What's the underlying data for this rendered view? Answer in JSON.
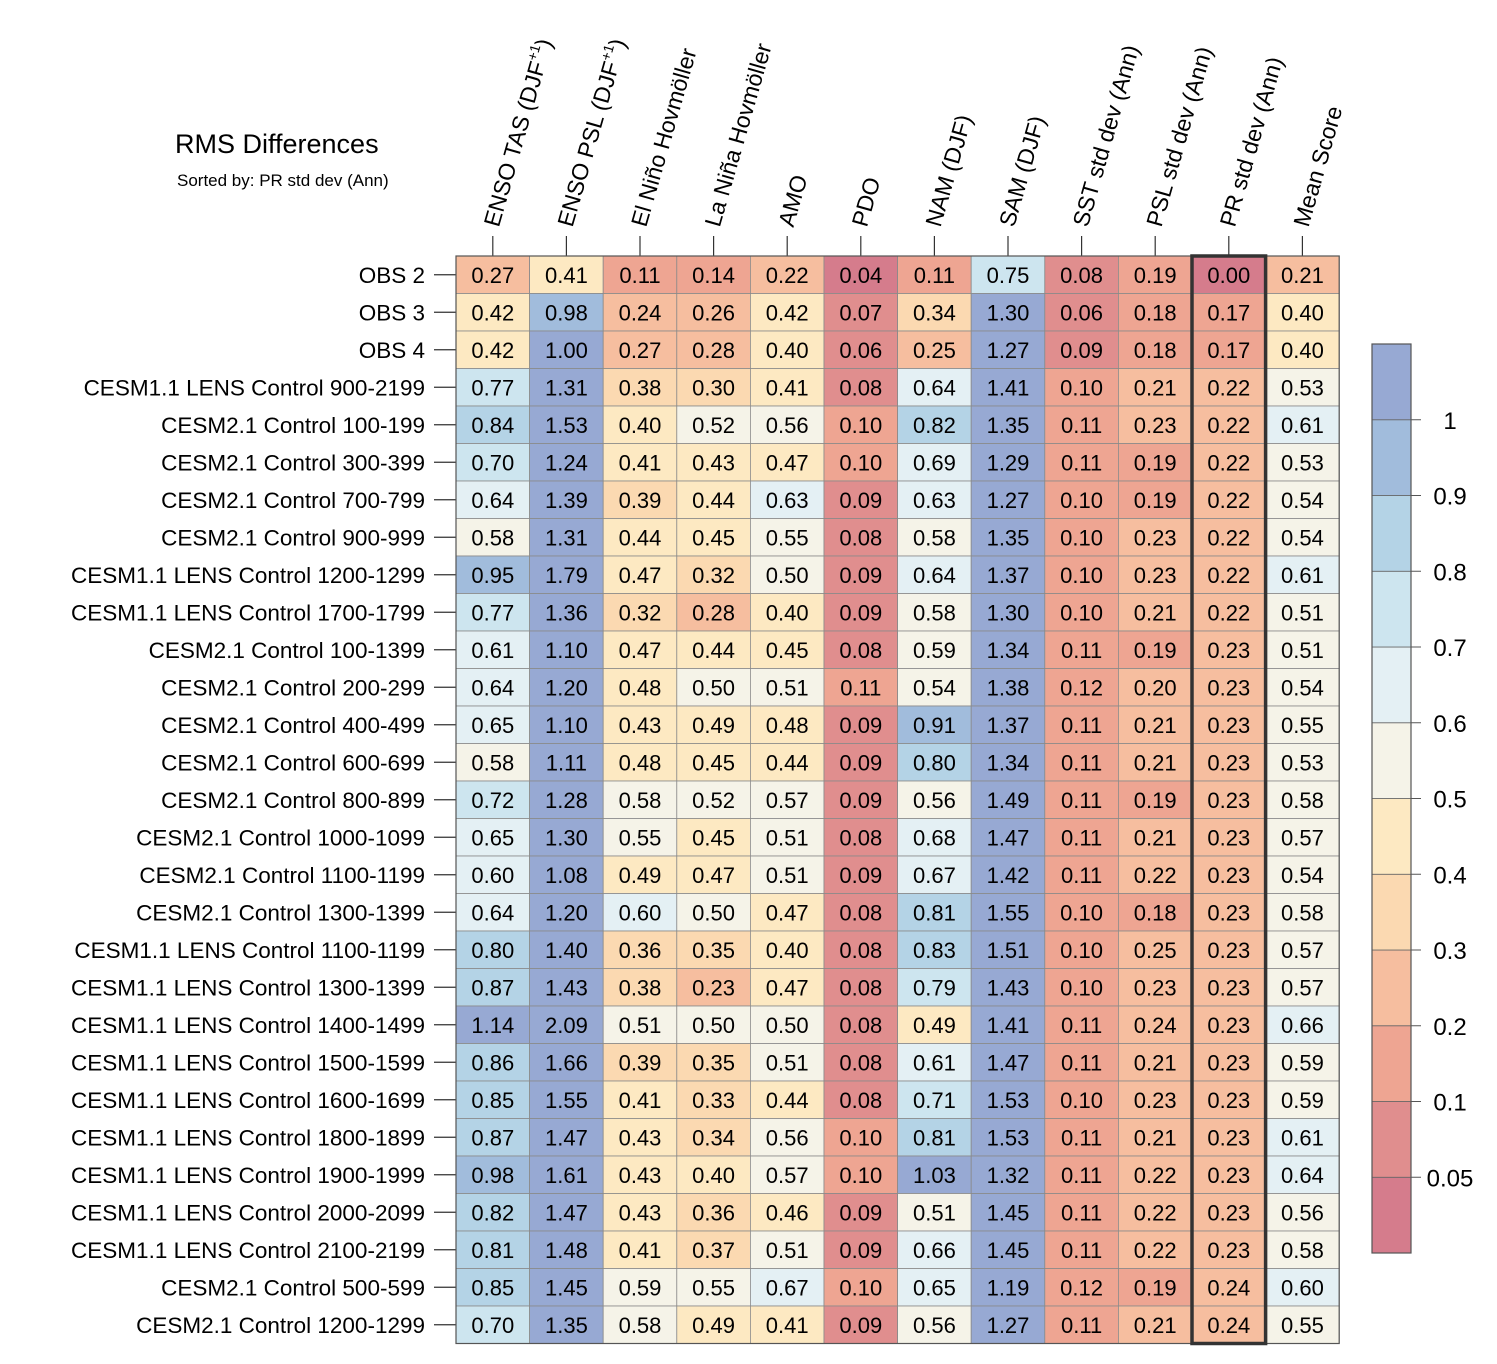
{
  "chart_data": {
    "type": "heatmap",
    "title": "RMS Differences",
    "subtitle": "Sorted by: PR std dev (Ann)",
    "highlighted_column": "PR std dev (Ann)",
    "columns": [
      "ENSO TAS (DJF+1)",
      "ENSO PSL (DJF+1)",
      "El Niño Hovmöller",
      "La Niña Hovmöller",
      "AMO",
      "PDO",
      "NAM (DJF)",
      "SAM (DJF)",
      "SST std dev (Ann)",
      "PSL std dev (Ann)",
      "PR std dev (Ann)",
      "Mean Score"
    ],
    "column_labels": [
      {
        "main": "ENSO TAS (DJF",
        "sup": "+1",
        "tail": ")"
      },
      {
        "main": "ENSO PSL (DJF",
        "sup": "+1",
        "tail": ")"
      },
      {
        "main": "El Niño Hovmöller",
        "sup": "",
        "tail": ""
      },
      {
        "main": "La Niña Hovmöller",
        "sup": "",
        "tail": ""
      },
      {
        "main": "AMO",
        "sup": "",
        "tail": ""
      },
      {
        "main": "PDO",
        "sup": "",
        "tail": ""
      },
      {
        "main": "NAM (DJF)",
        "sup": "",
        "tail": ""
      },
      {
        "main": "SAM (DJF)",
        "sup": "",
        "tail": ""
      },
      {
        "main": "SST std dev (Ann)",
        "sup": "",
        "tail": ""
      },
      {
        "main": "PSL std dev (Ann)",
        "sup": "",
        "tail": ""
      },
      {
        "main": "PR std dev (Ann)",
        "sup": "",
        "tail": ""
      },
      {
        "main": "Mean Score",
        "sup": "",
        "tail": ""
      }
    ],
    "rows": [
      "OBS 2",
      "OBS 3",
      "OBS 4",
      "CESM1.1 LENS Control 900-2199",
      "CESM2.1 Control 100-199",
      "CESM2.1 Control 300-399",
      "CESM2.1 Control 700-799",
      "CESM2.1 Control 900-999",
      "CESM1.1 LENS Control 1200-1299",
      "CESM1.1 LENS Control 1700-1799",
      "CESM2.1 Control 100-1399",
      "CESM2.1 Control 200-299",
      "CESM2.1 Control 400-499",
      "CESM2.1 Control 600-699",
      "CESM2.1 Control 800-899",
      "CESM2.1 Control 1000-1099",
      "CESM2.1 Control 1100-1199",
      "CESM2.1 Control 1300-1399",
      "CESM1.1 LENS Control 1100-1199",
      "CESM1.1 LENS Control 1300-1399",
      "CESM1.1 LENS Control 1400-1499",
      "CESM1.1 LENS Control 1500-1599",
      "CESM1.1 LENS Control 1600-1699",
      "CESM1.1 LENS Control 1800-1899",
      "CESM1.1 LENS Control 1900-1999",
      "CESM1.1 LENS Control 2000-2099",
      "CESM1.1 LENS Control 2100-2199",
      "CESM2.1 Control 500-599",
      "CESM2.1 Control 1200-1299"
    ],
    "values": [
      [
        "0.27",
        "0.41",
        "0.11",
        "0.14",
        "0.22",
        "0.04",
        "0.11",
        "0.75",
        "0.08",
        "0.19",
        "0.00",
        "0.21"
      ],
      [
        "0.42",
        "0.98",
        "0.24",
        "0.26",
        "0.42",
        "0.07",
        "0.34",
        "1.30",
        "0.06",
        "0.18",
        "0.17",
        "0.40"
      ],
      [
        "0.42",
        "1.00",
        "0.27",
        "0.28",
        "0.40",
        "0.06",
        "0.25",
        "1.27",
        "0.09",
        "0.18",
        "0.17",
        "0.40"
      ],
      [
        "0.77",
        "1.31",
        "0.38",
        "0.30",
        "0.41",
        "0.08",
        "0.64",
        "1.41",
        "0.10",
        "0.21",
        "0.22",
        "0.53"
      ],
      [
        "0.84",
        "1.53",
        "0.40",
        "0.52",
        "0.56",
        "0.10",
        "0.82",
        "1.35",
        "0.11",
        "0.23",
        "0.22",
        "0.61"
      ],
      [
        "0.70",
        "1.24",
        "0.41",
        "0.43",
        "0.47",
        "0.10",
        "0.69",
        "1.29",
        "0.11",
        "0.19",
        "0.22",
        "0.53"
      ],
      [
        "0.64",
        "1.39",
        "0.39",
        "0.44",
        "0.63",
        "0.09",
        "0.63",
        "1.27",
        "0.10",
        "0.19",
        "0.22",
        "0.54"
      ],
      [
        "0.58",
        "1.31",
        "0.44",
        "0.45",
        "0.55",
        "0.08",
        "0.58",
        "1.35",
        "0.10",
        "0.23",
        "0.22",
        "0.54"
      ],
      [
        "0.95",
        "1.79",
        "0.47",
        "0.32",
        "0.50",
        "0.09",
        "0.64",
        "1.37",
        "0.10",
        "0.23",
        "0.22",
        "0.61"
      ],
      [
        "0.77",
        "1.36",
        "0.32",
        "0.28",
        "0.40",
        "0.09",
        "0.58",
        "1.30",
        "0.10",
        "0.21",
        "0.22",
        "0.51"
      ],
      [
        "0.61",
        "1.10",
        "0.47",
        "0.44",
        "0.45",
        "0.08",
        "0.59",
        "1.34",
        "0.11",
        "0.19",
        "0.23",
        "0.51"
      ],
      [
        "0.64",
        "1.20",
        "0.48",
        "0.50",
        "0.51",
        "0.11",
        "0.54",
        "1.38",
        "0.12",
        "0.20",
        "0.23",
        "0.54"
      ],
      [
        "0.65",
        "1.10",
        "0.43",
        "0.49",
        "0.48",
        "0.09",
        "0.91",
        "1.37",
        "0.11",
        "0.21",
        "0.23",
        "0.55"
      ],
      [
        "0.58",
        "1.11",
        "0.48",
        "0.45",
        "0.44",
        "0.09",
        "0.80",
        "1.34",
        "0.11",
        "0.21",
        "0.23",
        "0.53"
      ],
      [
        "0.72",
        "1.28",
        "0.58",
        "0.52",
        "0.57",
        "0.09",
        "0.56",
        "1.49",
        "0.11",
        "0.19",
        "0.23",
        "0.58"
      ],
      [
        "0.65",
        "1.30",
        "0.55",
        "0.45",
        "0.51",
        "0.08",
        "0.68",
        "1.47",
        "0.11",
        "0.21",
        "0.23",
        "0.57"
      ],
      [
        "0.60",
        "1.08",
        "0.49",
        "0.47",
        "0.51",
        "0.09",
        "0.67",
        "1.42",
        "0.11",
        "0.22",
        "0.23",
        "0.54"
      ],
      [
        "0.64",
        "1.20",
        "0.60",
        "0.50",
        "0.47",
        "0.08",
        "0.81",
        "1.55",
        "0.10",
        "0.18",
        "0.23",
        "0.58"
      ],
      [
        "0.80",
        "1.40",
        "0.36",
        "0.35",
        "0.40",
        "0.08",
        "0.83",
        "1.51",
        "0.10",
        "0.25",
        "0.23",
        "0.57"
      ],
      [
        "0.87",
        "1.43",
        "0.38",
        "0.23",
        "0.47",
        "0.08",
        "0.79",
        "1.43",
        "0.10",
        "0.23",
        "0.23",
        "0.57"
      ],
      [
        "1.14",
        "2.09",
        "0.51",
        "0.50",
        "0.50",
        "0.08",
        "0.49",
        "1.41",
        "0.11",
        "0.24",
        "0.23",
        "0.66"
      ],
      [
        "0.86",
        "1.66",
        "0.39",
        "0.35",
        "0.51",
        "0.08",
        "0.61",
        "1.47",
        "0.11",
        "0.21",
        "0.23",
        "0.59"
      ],
      [
        "0.85",
        "1.55",
        "0.41",
        "0.33",
        "0.44",
        "0.08",
        "0.71",
        "1.53",
        "0.10",
        "0.23",
        "0.23",
        "0.59"
      ],
      [
        "0.87",
        "1.47",
        "0.43",
        "0.34",
        "0.56",
        "0.10",
        "0.81",
        "1.53",
        "0.11",
        "0.21",
        "0.23",
        "0.61"
      ],
      [
        "0.98",
        "1.61",
        "0.43",
        "0.40",
        "0.57",
        "0.10",
        "1.03",
        "1.32",
        "0.11",
        "0.22",
        "0.23",
        "0.64"
      ],
      [
        "0.82",
        "1.47",
        "0.43",
        "0.36",
        "0.46",
        "0.09",
        "0.51",
        "1.45",
        "0.11",
        "0.22",
        "0.23",
        "0.56"
      ],
      [
        "0.81",
        "1.48",
        "0.41",
        "0.37",
        "0.51",
        "0.09",
        "0.66",
        "1.45",
        "0.11",
        "0.22",
        "0.23",
        "0.58"
      ],
      [
        "0.85",
        "1.45",
        "0.59",
        "0.55",
        "0.67",
        "0.10",
        "0.65",
        "1.19",
        "0.12",
        "0.19",
        "0.24",
        "0.60"
      ],
      [
        "0.70",
        "1.35",
        "0.58",
        "0.49",
        "0.41",
        "0.09",
        "0.56",
        "1.27",
        "0.11",
        "0.21",
        "0.24",
        "0.55"
      ]
    ],
    "colorbar": {
      "bounds": [
        0.05,
        0.1,
        0.2,
        0.3,
        0.4,
        0.5,
        0.6,
        0.7,
        0.8,
        0.9,
        1
      ],
      "tick_labels": [
        "0.05",
        "0.1",
        "0.2",
        "0.3",
        "0.4",
        "0.5",
        "0.6",
        "0.7",
        "0.8",
        "0.9",
        "1"
      ],
      "colors_low_to_high": [
        "#d57c8c",
        "#e08e8e",
        "#eea592",
        "#f6be9f",
        "#fbd9b1",
        "#fde9c2",
        "#f5f3e8",
        "#e4f0f4",
        "#cde5ef",
        "#b4d3e6",
        "#a1bcdc",
        "#97a9d3"
      ]
    }
  }
}
